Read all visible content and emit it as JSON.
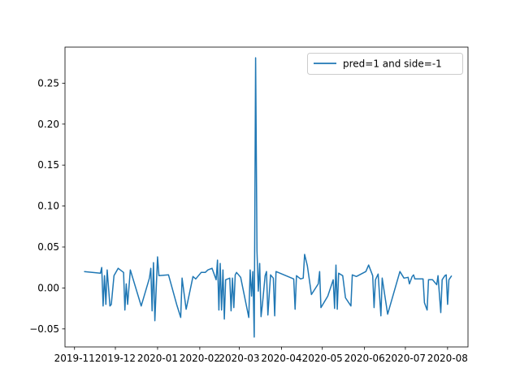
{
  "chart_data": {
    "type": "line",
    "title": "",
    "xlabel": "",
    "ylabel": "",
    "xlim": [
      "2019-10-25",
      "2020-08-16"
    ],
    "ylim": [
      -0.072,
      0.294
    ],
    "grid": false,
    "legend_position": "top-right",
    "x_tick_labels": [
      "2019-11",
      "2019-12",
      "2020-01",
      "2020-02",
      "2020-03",
      "2020-04",
      "2020-05",
      "2020-06",
      "2020-07",
      "2020-08"
    ],
    "x_ticks": [
      "2019-11-01",
      "2019-12-01",
      "2020-01-01",
      "2020-02-01",
      "2020-03-01",
      "2020-04-01",
      "2020-05-01",
      "2020-06-01",
      "2020-07-01",
      "2020-08-01"
    ],
    "y_ticks": [
      -0.05,
      0.0,
      0.05,
      0.1,
      0.15,
      0.2,
      0.25
    ],
    "y_tick_labels": [
      "−0.05",
      "0.00",
      "0.05",
      "0.10",
      "0.15",
      "0.20",
      "0.25"
    ],
    "series": [
      {
        "name": "pred=1 and side=-1",
        "color": "#1f77b4",
        "points": [
          [
            "2019-11-08",
            0.02
          ],
          [
            "2019-11-20",
            0.018
          ],
          [
            "2019-11-21",
            0.025
          ],
          [
            "2019-11-22",
            -0.022
          ],
          [
            "2019-11-23",
            0.015
          ],
          [
            "2019-11-24",
            -0.02
          ],
          [
            "2019-11-25",
            0.022
          ],
          [
            "2019-11-27",
            -0.022
          ],
          [
            "2019-11-28",
            -0.02
          ],
          [
            "2019-11-30",
            0.015
          ],
          [
            "2019-12-03",
            0.024
          ],
          [
            "2019-12-07",
            0.019
          ],
          [
            "2019-12-08",
            -0.027
          ],
          [
            "2019-12-09",
            0.005
          ],
          [
            "2019-12-10",
            -0.02
          ],
          [
            "2019-12-12",
            0.022
          ],
          [
            "2019-12-20",
            -0.022
          ],
          [
            "2019-12-26",
            0.012
          ],
          [
            "2019-12-27",
            0.024
          ],
          [
            "2019-12-28",
            -0.028
          ],
          [
            "2019-12-29",
            0.031
          ],
          [
            "2019-12-30",
            -0.04
          ],
          [
            "2020-01-01",
            0.038
          ],
          [
            "2020-01-02",
            0.015
          ],
          [
            "2020-01-09",
            0.016
          ],
          [
            "2020-01-15",
            -0.02
          ],
          [
            "2020-01-18",
            -0.036
          ],
          [
            "2020-01-19",
            0.012
          ],
          [
            "2020-01-22",
            -0.026
          ],
          [
            "2020-01-27",
            0.014
          ],
          [
            "2020-01-29",
            0.011
          ],
          [
            "2020-02-02",
            0.019
          ],
          [
            "2020-02-05",
            0.019
          ],
          [
            "2020-02-07",
            0.022
          ],
          [
            "2020-02-10",
            0.024
          ],
          [
            "2020-02-13",
            0.01
          ],
          [
            "2020-02-14",
            0.034
          ],
          [
            "2020-02-15",
            -0.027
          ],
          [
            "2020-02-16",
            0.03
          ],
          [
            "2020-02-17",
            -0.027
          ],
          [
            "2020-02-18",
            0.022
          ],
          [
            "2020-02-19",
            -0.038
          ],
          [
            "2020-02-20",
            0.01
          ],
          [
            "2020-02-23",
            0.012
          ],
          [
            "2020-02-24",
            -0.028
          ],
          [
            "2020-02-25",
            0.012
          ],
          [
            "2020-02-26",
            -0.024
          ],
          [
            "2020-02-27",
            0.016
          ],
          [
            "2020-02-28",
            0.019
          ],
          [
            "2020-03-02",
            0.013
          ],
          [
            "2020-03-08",
            -0.036
          ],
          [
            "2020-03-09",
            0.022
          ],
          [
            "2020-03-10",
            -0.01
          ],
          [
            "2020-03-11",
            0.02
          ],
          [
            "2020-03-12",
            -0.06
          ],
          [
            "2020-03-13",
            0.281
          ],
          [
            "2020-03-14",
            0.045
          ],
          [
            "2020-03-15",
            -0.004
          ],
          [
            "2020-03-16",
            0.03
          ],
          [
            "2020-03-17",
            -0.035
          ],
          [
            "2020-03-18",
            -0.02
          ],
          [
            "2020-03-20",
            0.015
          ],
          [
            "2020-03-21",
            0.02
          ],
          [
            "2020-03-22",
            -0.033
          ],
          [
            "2020-03-24",
            0.016
          ],
          [
            "2020-03-26",
            0.012
          ],
          [
            "2020-03-27",
            -0.034
          ],
          [
            "2020-03-28",
            0.02
          ],
          [
            "2020-04-10",
            0.011
          ],
          [
            "2020-04-11",
            -0.026
          ],
          [
            "2020-04-12",
            0.015
          ],
          [
            "2020-04-15",
            0.011
          ],
          [
            "2020-04-17",
            0.012
          ],
          [
            "2020-04-18",
            0.041
          ],
          [
            "2020-04-20",
            0.027
          ],
          [
            "2020-04-23",
            -0.008
          ],
          [
            "2020-04-28",
            0.005
          ],
          [
            "2020-04-29",
            0.02
          ],
          [
            "2020-04-30",
            -0.024
          ],
          [
            "2020-05-05",
            -0.01
          ],
          [
            "2020-05-09",
            0.01
          ],
          [
            "2020-05-10",
            -0.025
          ],
          [
            "2020-05-11",
            0.028
          ],
          [
            "2020-05-12",
            -0.026
          ],
          [
            "2020-05-13",
            0.018
          ],
          [
            "2020-05-16",
            0.015
          ],
          [
            "2020-05-18",
            -0.012
          ],
          [
            "2020-05-22",
            -0.022
          ],
          [
            "2020-05-23",
            0.016
          ],
          [
            "2020-05-26",
            0.014
          ],
          [
            "2020-06-02",
            0.02
          ],
          [
            "2020-06-04",
            0.028
          ],
          [
            "2020-06-07",
            0.015
          ],
          [
            "2020-06-08",
            -0.024
          ],
          [
            "2020-06-09",
            0.01
          ],
          [
            "2020-06-11",
            0.017
          ],
          [
            "2020-06-13",
            -0.034
          ],
          [
            "2020-06-14",
            0.012
          ],
          [
            "2020-06-18",
            -0.032
          ],
          [
            "2020-06-27",
            0.02
          ],
          [
            "2020-06-30",
            0.012
          ],
          [
            "2020-07-03",
            0.013
          ],
          [
            "2020-07-04",
            0.005
          ],
          [
            "2020-07-06",
            0.014
          ],
          [
            "2020-07-07",
            0.016
          ],
          [
            "2020-07-08",
            0.011
          ],
          [
            "2020-07-14",
            0.011
          ],
          [
            "2020-07-15",
            -0.018
          ],
          [
            "2020-07-17",
            -0.027
          ],
          [
            "2020-07-18",
            0.01
          ],
          [
            "2020-07-21",
            0.01
          ],
          [
            "2020-07-24",
            0.004
          ],
          [
            "2020-07-25",
            0.015
          ],
          [
            "2020-07-27",
            -0.03
          ],
          [
            "2020-07-28",
            0.01
          ],
          [
            "2020-07-30",
            0.015
          ],
          [
            "2020-07-31",
            0.016
          ],
          [
            "2020-08-01",
            -0.02
          ],
          [
            "2020-08-02",
            0.01
          ],
          [
            "2020-08-04",
            0.015
          ]
        ]
      }
    ]
  }
}
